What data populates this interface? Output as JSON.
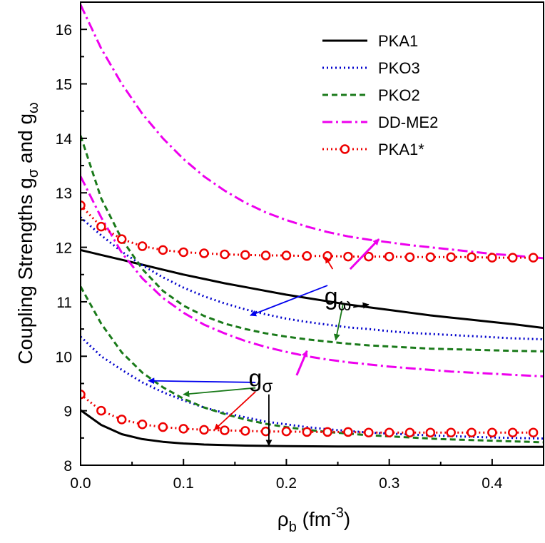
{
  "chart_data": {
    "type": "line",
    "title": "",
    "xlabel": "ρ_b (fm^-3)",
    "xlabel_parts": {
      "base": "ρ",
      "sub": "b",
      "unit_open": " (fm",
      "sup": "-3",
      "unit_close": ")"
    },
    "ylabel": "Coupling Strengths g_σ and g_ω",
    "ylabel_parts": {
      "text": "Coupling Strengths g",
      "sub1": "σ",
      "mid": " and g",
      "sub2": "ω"
    },
    "xlim": [
      0.0,
      0.45
    ],
    "ylim": [
      8,
      16.5
    ],
    "xticks": [
      0.0,
      0.1,
      0.2,
      0.3,
      0.4
    ],
    "xtick_labels": [
      "0.0",
      "0.1",
      "0.2",
      "0.3",
      "0.4"
    ],
    "yticks": [
      8,
      9,
      10,
      11,
      12,
      13,
      14,
      15,
      16
    ],
    "ytick_labels": [
      "8",
      "9",
      "10",
      "11",
      "12",
      "13",
      "14",
      "15",
      "16"
    ],
    "grid": false,
    "legend_position": "top-right",
    "series": [
      {
        "name": "PKA1",
        "coupling": "g_omega",
        "color": "#000000",
        "style": "solid",
        "x": [
          0,
          0.02,
          0.04,
          0.06,
          0.08,
          0.1,
          0.12,
          0.14,
          0.16,
          0.18,
          0.2,
          0.22,
          0.24,
          0.26,
          0.28,
          0.3,
          0.32,
          0.34,
          0.36,
          0.38,
          0.4,
          0.42,
          0.45
        ],
        "y": [
          11.95,
          11.86,
          11.77,
          11.68,
          11.59,
          11.5,
          11.42,
          11.34,
          11.27,
          11.2,
          11.13,
          11.07,
          11.01,
          10.95,
          10.9,
          10.85,
          10.8,
          10.75,
          10.71,
          10.67,
          10.63,
          10.59,
          10.52
        ]
      },
      {
        "name": "PKA1",
        "coupling": "g_sigma",
        "color": "#000000",
        "style": "solid",
        "x": [
          0,
          0.02,
          0.04,
          0.06,
          0.08,
          0.1,
          0.12,
          0.14,
          0.16,
          0.18,
          0.2,
          0.25,
          0.3,
          0.35,
          0.4,
          0.45
        ],
        "y": [
          9.01,
          8.74,
          8.57,
          8.48,
          8.43,
          8.4,
          8.38,
          8.37,
          8.36,
          8.355,
          8.35,
          8.345,
          8.342,
          8.34,
          8.338,
          8.336
        ]
      },
      {
        "name": "PKO3",
        "coupling": "g_omega",
        "color": "#0000cc",
        "style": "dotted",
        "x": [
          0,
          0.02,
          0.04,
          0.06,
          0.08,
          0.1,
          0.12,
          0.14,
          0.16,
          0.18,
          0.2,
          0.22,
          0.24,
          0.26,
          0.28,
          0.3,
          0.32,
          0.34,
          0.36,
          0.38,
          0.4,
          0.42,
          0.45
        ],
        "y": [
          12.55,
          12.22,
          11.92,
          11.67,
          11.45,
          11.26,
          11.1,
          10.97,
          10.86,
          10.77,
          10.69,
          10.63,
          10.58,
          10.53,
          10.5,
          10.46,
          10.43,
          10.41,
          10.39,
          10.37,
          10.35,
          10.33,
          10.31
        ]
      },
      {
        "name": "PKO3",
        "coupling": "g_sigma",
        "color": "#0000cc",
        "style": "dotted",
        "x": [
          0,
          0.02,
          0.04,
          0.06,
          0.08,
          0.1,
          0.12,
          0.14,
          0.16,
          0.18,
          0.2,
          0.22,
          0.24,
          0.26,
          0.28,
          0.3,
          0.35,
          0.4,
          0.45
        ],
        "y": [
          10.36,
          10.0,
          9.75,
          9.52,
          9.34,
          9.19,
          9.06,
          8.96,
          8.88,
          8.8,
          8.75,
          8.7,
          8.66,
          8.63,
          8.6,
          8.58,
          8.54,
          8.51,
          8.49
        ]
      },
      {
        "name": "PKO2",
        "coupling": "g_omega",
        "color": "#1a7a1a",
        "style": "dashed",
        "x": [
          0,
          0.02,
          0.04,
          0.06,
          0.08,
          0.1,
          0.12,
          0.14,
          0.16,
          0.18,
          0.2,
          0.22,
          0.24,
          0.26,
          0.28,
          0.3,
          0.32,
          0.34,
          0.36,
          0.38,
          0.4,
          0.42,
          0.45
        ],
        "y": [
          14.05,
          12.9,
          12.15,
          11.6,
          11.2,
          10.93,
          10.74,
          10.6,
          10.5,
          10.42,
          10.36,
          10.31,
          10.27,
          10.23,
          10.2,
          10.18,
          10.16,
          10.14,
          10.13,
          10.12,
          10.11,
          10.1,
          10.09
        ]
      },
      {
        "name": "PKO2",
        "coupling": "g_sigma",
        "color": "#1a7a1a",
        "style": "dashed",
        "x": [
          0,
          0.02,
          0.04,
          0.06,
          0.08,
          0.1,
          0.12,
          0.14,
          0.16,
          0.18,
          0.2,
          0.22,
          0.24,
          0.26,
          0.28,
          0.3,
          0.35,
          0.4,
          0.45
        ],
        "y": [
          11.28,
          10.6,
          10.07,
          9.7,
          9.43,
          9.22,
          9.06,
          8.94,
          8.84,
          8.76,
          8.7,
          8.65,
          8.61,
          8.58,
          8.55,
          8.53,
          8.48,
          8.45,
          8.42
        ]
      },
      {
        "name": "DD-ME2",
        "coupling": "g_omega",
        "color": "#ee00ee",
        "style": "dashdot",
        "x": [
          0,
          0.02,
          0.04,
          0.06,
          0.08,
          0.1,
          0.12,
          0.14,
          0.16,
          0.18,
          0.2,
          0.22,
          0.24,
          0.26,
          0.28,
          0.3,
          0.32,
          0.34,
          0.36,
          0.38,
          0.4,
          0.42,
          0.45
        ],
        "y": [
          16.45,
          15.65,
          15.0,
          14.45,
          14.0,
          13.62,
          13.3,
          13.04,
          12.82,
          12.64,
          12.5,
          12.38,
          12.28,
          12.2,
          12.14,
          12.09,
          12.04,
          12.0,
          11.96,
          11.92,
          11.88,
          11.85,
          11.8
        ]
      },
      {
        "name": "DD-ME2",
        "coupling": "g_sigma",
        "color": "#ee00ee",
        "style": "dashdot",
        "x": [
          0,
          0.02,
          0.04,
          0.06,
          0.08,
          0.1,
          0.12,
          0.14,
          0.16,
          0.18,
          0.2,
          0.22,
          0.24,
          0.26,
          0.28,
          0.3,
          0.32,
          0.34,
          0.36,
          0.38,
          0.4,
          0.42,
          0.45
        ],
        "y": [
          13.3,
          12.55,
          11.9,
          11.43,
          11.07,
          10.8,
          10.58,
          10.42,
          10.28,
          10.17,
          10.08,
          10.0,
          9.94,
          9.89,
          9.85,
          9.81,
          9.78,
          9.75,
          9.72,
          9.7,
          9.68,
          9.66,
          9.63
        ]
      },
      {
        "name": "PKA1*",
        "coupling": "g_omega",
        "color": "#ee0000",
        "style": "dotted-circles",
        "x": [
          0,
          0.02,
          0.04,
          0.06,
          0.08,
          0.1,
          0.12,
          0.14,
          0.16,
          0.18,
          0.2,
          0.22,
          0.24,
          0.26,
          0.28,
          0.3,
          0.32,
          0.34,
          0.36,
          0.38,
          0.4,
          0.42,
          0.44
        ],
        "y": [
          12.77,
          12.38,
          12.15,
          12.02,
          11.95,
          11.91,
          11.89,
          11.87,
          11.86,
          11.85,
          11.85,
          11.84,
          11.84,
          11.83,
          11.83,
          11.83,
          11.82,
          11.82,
          11.82,
          11.82,
          11.81,
          11.81,
          11.81
        ]
      },
      {
        "name": "PKA1*",
        "coupling": "g_sigma",
        "color": "#ee0000",
        "style": "dotted-circles",
        "x": [
          0,
          0.02,
          0.04,
          0.06,
          0.08,
          0.1,
          0.12,
          0.14,
          0.16,
          0.18,
          0.2,
          0.22,
          0.24,
          0.26,
          0.28,
          0.3,
          0.32,
          0.34,
          0.36,
          0.38,
          0.4,
          0.42,
          0.44
        ],
        "y": [
          9.3,
          9.0,
          8.84,
          8.75,
          8.7,
          8.67,
          8.65,
          8.64,
          8.63,
          8.62,
          8.62,
          8.61,
          8.61,
          8.61,
          8.6,
          8.6,
          8.6,
          8.6,
          8.6,
          8.6,
          8.6,
          8.6,
          8.6
        ]
      }
    ],
    "legend": [
      {
        "label": "PKA1",
        "color": "#000000",
        "style": "solid"
      },
      {
        "label": "PKO3",
        "color": "#0000cc",
        "style": "dotted"
      },
      {
        "label": "PKO2",
        "color": "#1a7a1a",
        "style": "dashed"
      },
      {
        "label": "DD-ME2",
        "color": "#ee00ee",
        "style": "dashdot"
      },
      {
        "label": "PKA1*",
        "color": "#ee0000",
        "style": "dotted-circles"
      }
    ],
    "annotations": [
      {
        "text": "g",
        "sub": "ω",
        "at": [
          0.25,
          10.95
        ],
        "arrows": [
          {
            "color": "#0000ee",
            "from": [
              0.24,
              11.3
            ],
            "to": [
              0.165,
              10.75
            ]
          },
          {
            "color": "#1a7a1a",
            "from": [
              0.255,
              10.95
            ],
            "to": [
              0.248,
              10.3
            ]
          },
          {
            "color": "#000000",
            "from": [
              0.265,
              10.9
            ],
            "to": [
              0.28,
              10.95
            ]
          },
          {
            "color": "#ee0000",
            "from": [
              0.245,
              11.6
            ],
            "to": [
              0.238,
              11.82
            ]
          },
          {
            "color": "#ee00ee",
            "from": [
              0.262,
              11.6
            ],
            "to": [
              0.29,
              12.15
            ]
          }
        ]
      },
      {
        "text": "g",
        "sub": "σ",
        "at": [
          0.175,
          9.45
        ],
        "arrows": [
          {
            "color": "#0000ee",
            "from": [
              0.17,
              9.52
            ],
            "to": [
              0.066,
              9.55
            ]
          },
          {
            "color": "#1a7a1a",
            "from": [
              0.17,
              9.42
            ],
            "to": [
              0.1,
              9.3
            ]
          },
          {
            "color": "#ee0000",
            "from": [
              0.17,
              9.35
            ],
            "to": [
              0.13,
              8.65
            ]
          },
          {
            "color": "#000000",
            "from": [
              0.183,
              9.3
            ],
            "to": [
              0.183,
              8.36
            ]
          },
          {
            "color": "#ee00ee",
            "from": [
              0.21,
              9.65
            ],
            "to": [
              0.22,
              10.1
            ]
          }
        ]
      }
    ]
  }
}
